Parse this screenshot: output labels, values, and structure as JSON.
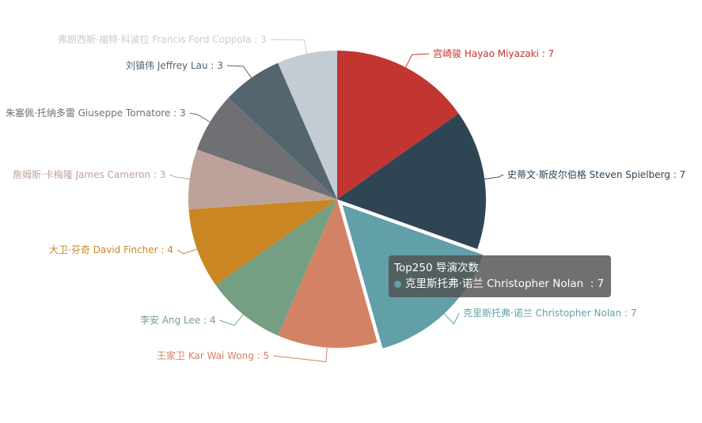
{
  "chart_data": {
    "type": "pie",
    "title": "",
    "series_name": "Top250 导演次数",
    "slices": [
      {
        "label": "宫崎骏 Hayao Miyazaki",
        "value": 7,
        "color": "#c23531"
      },
      {
        "label": "史蒂文·斯皮尔伯格 Steven Spielberg",
        "value": 7,
        "color": "#2f4554"
      },
      {
        "label": "克里斯托弗·诺兰 Christopher Nolan",
        "value": 7,
        "color": "#61a0a8"
      },
      {
        "label": "王家卫 Kar Wai Wong",
        "value": 5,
        "color": "#d48265"
      },
      {
        "label": "李安 Ang Lee",
        "value": 4,
        "color": "#749f83"
      },
      {
        "label": "大卫·芬奇 David Fincher",
        "value": 4,
        "color": "#ca8622"
      },
      {
        "label": "詹姆斯·卡梅隆 James Cameron",
        "value": 3,
        "color": "#bda29a"
      },
      {
        "label": "朱塞佩·托纳多雷 Giuseppe Tornatore",
        "value": 3,
        "color": "#6e7074"
      },
      {
        "label": "刘镇伟 Jeffrey Lau",
        "value": 3,
        "color": "#546570"
      },
      {
        "label": "弗朗西斯·福特·科波拉 Francis Ford Coppola",
        "value": 3,
        "color": "#c4ccd3"
      }
    ],
    "highlighted_slice": 2,
    "tooltip": {
      "title": "Top250 导演次数",
      "label": "克里斯托弗·诺兰 Christopher Nolan",
      "value": 7
    }
  }
}
